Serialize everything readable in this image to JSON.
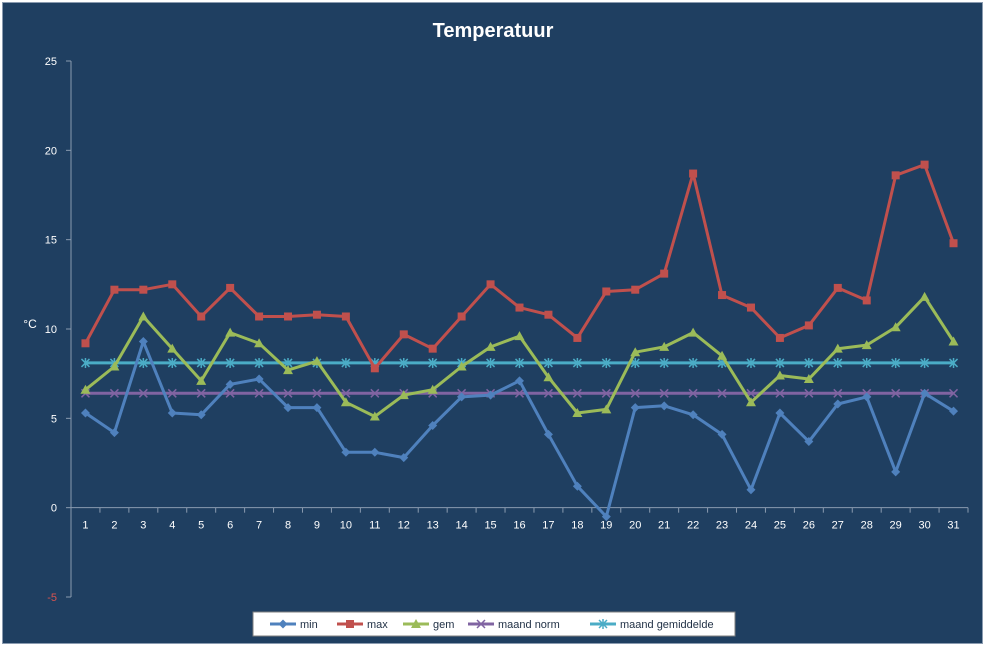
{
  "chart_data": {
    "type": "line",
    "title": "Temperatuur",
    "ylabel": "°C",
    "xlabel": "",
    "ylim": [
      -5,
      25
    ],
    "yticks": [
      -5,
      0,
      5,
      10,
      15,
      20,
      25
    ],
    "categories": [
      "1",
      "2",
      "3",
      "4",
      "5",
      "6",
      "7",
      "8",
      "9",
      "10",
      "11",
      "12",
      "13",
      "14",
      "15",
      "16",
      "17",
      "18",
      "19",
      "20",
      "21",
      "22",
      "23",
      "24",
      "25",
      "26",
      "27",
      "28",
      "29",
      "30",
      "31"
    ],
    "grid": false,
    "legend_position": "bottom",
    "series": [
      {
        "name": "min",
        "color": "#4f81bd",
        "marker": "diamond",
        "values": [
          5.3,
          4.2,
          9.3,
          5.3,
          5.2,
          6.9,
          7.2,
          5.6,
          5.6,
          3.1,
          3.1,
          2.8,
          4.6,
          6.2,
          6.3,
          7.1,
          4.1,
          1.2,
          -0.5,
          5.6,
          5.7,
          5.2,
          4.1,
          1.0,
          5.3,
          3.7,
          5.8,
          6.2,
          2.0,
          6.4,
          5.4
        ]
      },
      {
        "name": "max",
        "color": "#c0504d",
        "marker": "square",
        "values": [
          9.2,
          12.2,
          12.2,
          12.5,
          10.7,
          12.3,
          10.7,
          10.7,
          10.8,
          10.7,
          7.8,
          9.7,
          8.9,
          10.7,
          12.5,
          11.2,
          10.8,
          9.5,
          12.1,
          12.2,
          13.1,
          18.7,
          11.9,
          11.2,
          9.5,
          10.2,
          12.3,
          11.6,
          18.6,
          19.2,
          14.8
        ]
      },
      {
        "name": "gem",
        "color": "#9bbb59",
        "marker": "triangle",
        "values": [
          6.6,
          7.9,
          10.7,
          8.9,
          7.1,
          9.8,
          9.2,
          7.7,
          8.2,
          5.9,
          5.1,
          6.3,
          6.6,
          7.9,
          9.0,
          9.6,
          7.3,
          5.3,
          5.5,
          8.7,
          9.0,
          9.8,
          8.5,
          5.9,
          7.4,
          7.2,
          8.9,
          9.1,
          10.1,
          11.8,
          9.3
        ]
      },
      {
        "name": "maand norm",
        "color": "#8064a2",
        "marker": "x",
        "values": [
          6.4,
          6.4,
          6.4,
          6.4,
          6.4,
          6.4,
          6.4,
          6.4,
          6.4,
          6.4,
          6.4,
          6.4,
          6.4,
          6.4,
          6.4,
          6.4,
          6.4,
          6.4,
          6.4,
          6.4,
          6.4,
          6.4,
          6.4,
          6.4,
          6.4,
          6.4,
          6.4,
          6.4,
          6.4,
          6.4,
          6.4
        ]
      },
      {
        "name": "maand gemiddelde",
        "color": "#4bacc6",
        "marker": "star",
        "values": [
          8.1,
          8.1,
          8.1,
          8.1,
          8.1,
          8.1,
          8.1,
          8.1,
          8.1,
          8.1,
          8.1,
          8.1,
          8.1,
          8.1,
          8.1,
          8.1,
          8.1,
          8.1,
          8.1,
          8.1,
          8.1,
          8.1,
          8.1,
          8.1,
          8.1,
          8.1,
          8.1,
          8.1,
          8.1,
          8.1,
          8.1
        ]
      }
    ]
  }
}
